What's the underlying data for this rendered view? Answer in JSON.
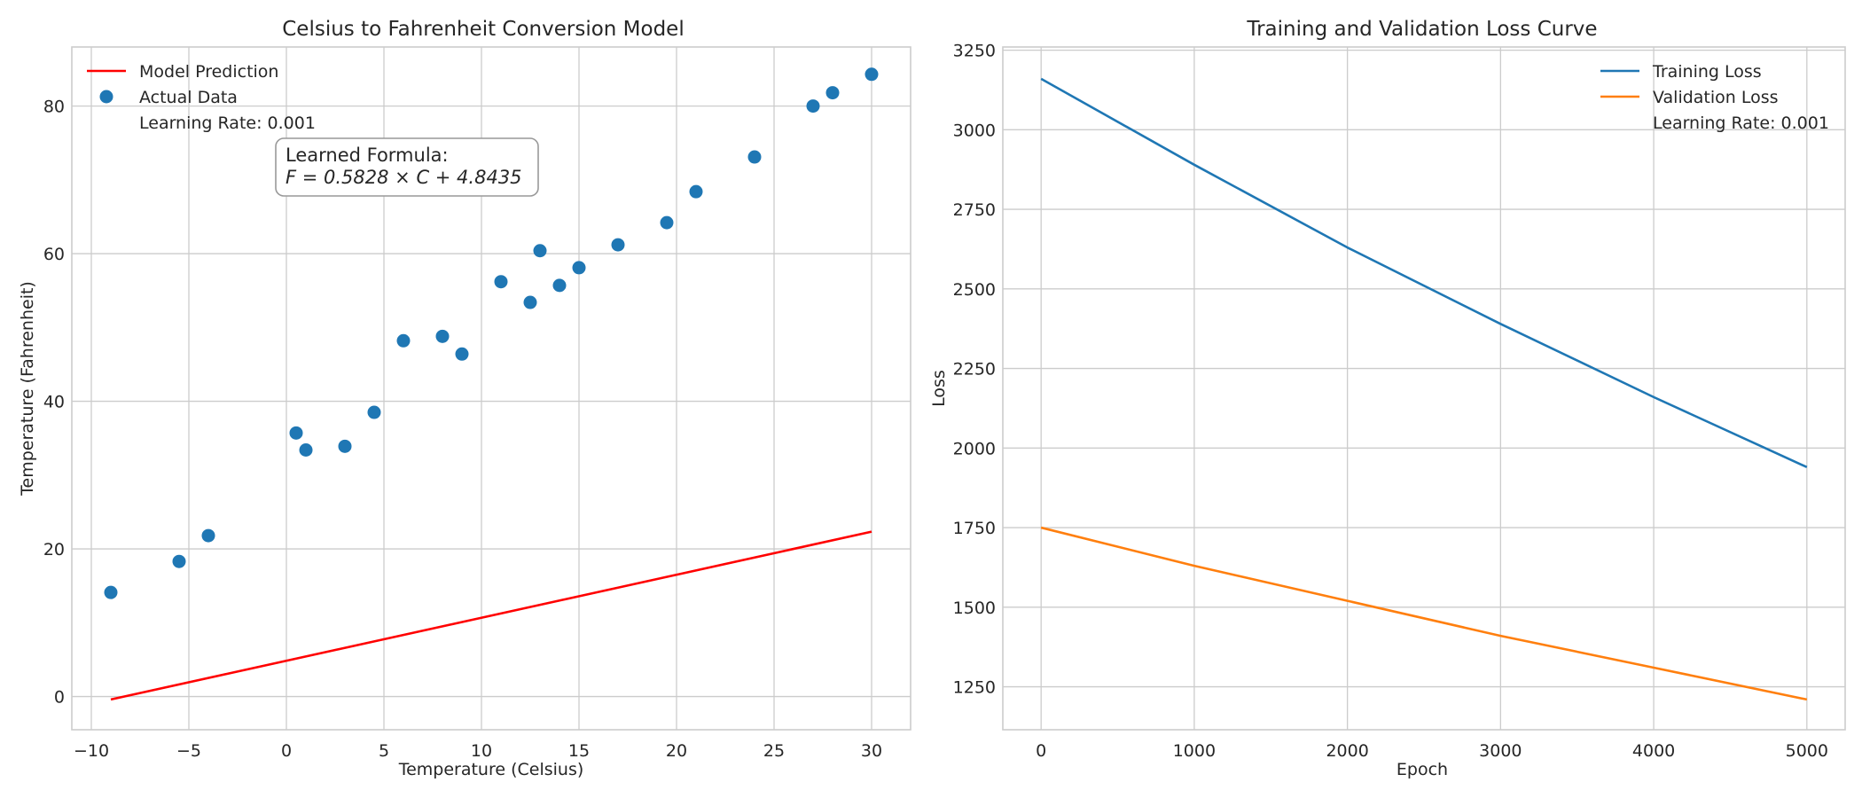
{
  "chart_data": [
    {
      "type": "scatter",
      "title": "Celsius to Fahrenheit Conversion Model",
      "xlabel": "Temperature (Celsius)",
      "ylabel": "Temperature (Fahrenheit)",
      "xlim": [
        -11,
        32
      ],
      "ylim": [
        -4.5,
        88
      ],
      "xticks": [
        -10,
        -5,
        0,
        5,
        10,
        15,
        20,
        25,
        30
      ],
      "yticks": [
        0,
        20,
        40,
        60,
        80
      ],
      "grid": true,
      "legend": {
        "placement": "top-left",
        "entries": [
          "Model Prediction",
          "Actual Data",
          "Learning Rate: 0.001"
        ]
      },
      "annotation": {
        "line1": "Learned Formula:",
        "line2": "F = 0.5828 × C + 4.8435"
      },
      "series": [
        {
          "name": "Model Prediction",
          "kind": "line",
          "color": "#ff0000",
          "x": [
            -9,
            30
          ],
          "y": [
            -0.4,
            22.33
          ]
        },
        {
          "name": "Actual Data",
          "kind": "scatter",
          "color": "#1f77b4",
          "x": [
            -9,
            -5.5,
            -4,
            0.5,
            1,
            3,
            4.5,
            6,
            8,
            9,
            11,
            12.5,
            13,
            14,
            15,
            17,
            19.5,
            21,
            24,
            27,
            28,
            30
          ],
          "y": [
            14.1,
            18.3,
            21.8,
            35.7,
            33.4,
            33.9,
            38.5,
            48.2,
            48.8,
            46.4,
            56.2,
            53.4,
            60.4,
            55.7,
            58.1,
            61.2,
            64.2,
            68.4,
            73.1,
            80.0,
            81.8,
            84.3
          ]
        }
      ]
    },
    {
      "type": "line",
      "title": "Training and Validation Loss Curve",
      "xlabel": "Epoch",
      "ylabel": "Loss",
      "xlim": [
        -250,
        5250
      ],
      "ylim": [
        1115,
        3260
      ],
      "xticks": [
        0,
        1000,
        2000,
        3000,
        4000,
        5000
      ],
      "yticks": [
        1250,
        1500,
        1750,
        2000,
        2250,
        2500,
        2750,
        3000,
        3250
      ],
      "grid": true,
      "legend": {
        "placement": "top-right",
        "entries": [
          "Training Loss",
          "Validation Loss",
          "Learning Rate: 0.001"
        ]
      },
      "series": [
        {
          "name": "Training Loss",
          "color": "#1f77b4",
          "x": [
            0,
            1000,
            2000,
            3000,
            4000,
            5000
          ],
          "y": [
            3160,
            2890,
            2630,
            2390,
            2160,
            1940
          ]
        },
        {
          "name": "Validation Loss",
          "color": "#ff7f0e",
          "x": [
            0,
            1000,
            2000,
            3000,
            4000,
            5000
          ],
          "y": [
            1750,
            1630,
            1520,
            1410,
            1310,
            1210
          ]
        }
      ]
    }
  ]
}
